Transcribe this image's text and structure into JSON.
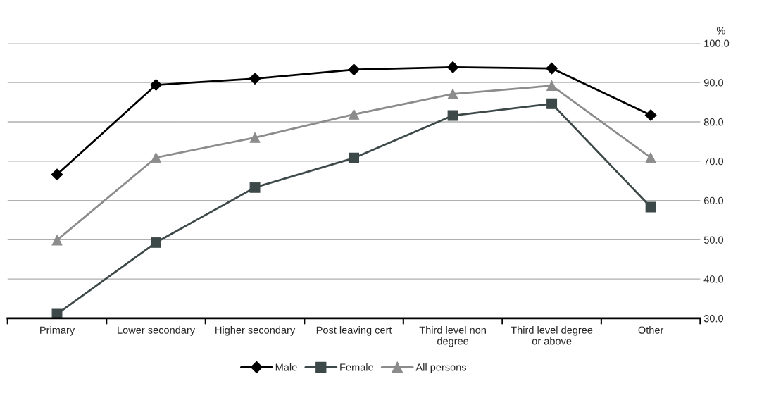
{
  "chart_data": {
    "type": "line",
    "categories": [
      "Primary",
      "Lower secondary",
      "Higher secondary",
      "Post leaving cert",
      "Third level non\ndegree",
      "Third level degree\nor above",
      "Other"
    ],
    "series": [
      {
        "name": "Male",
        "color": "#000000",
        "marker": "diamond",
        "values": [
          66.6,
          89.4,
          91.0,
          93.3,
          93.9,
          93.6,
          81.7
        ]
      },
      {
        "name": "Female",
        "color": "#3d4848",
        "marker": "square",
        "values": [
          31.1,
          49.3,
          63.3,
          70.8,
          81.6,
          84.6,
          58.3
        ]
      },
      {
        "name": "All persons",
        "color": "#8c8c8c",
        "marker": "triangle",
        "values": [
          49.9,
          70.9,
          76.0,
          81.9,
          87.1,
          89.2,
          70.9
        ]
      }
    ],
    "ylabel": "%",
    "ylim": [
      30,
      100
    ],
    "yticks": [
      {
        "value": 30,
        "label": "30.0"
      },
      {
        "value": 40,
        "label": "40.0"
      },
      {
        "value": 50,
        "label": "50.0"
      },
      {
        "value": 60,
        "label": "60.0"
      },
      {
        "value": 70,
        "label": "70.0"
      },
      {
        "value": 80,
        "label": "80.0"
      },
      {
        "value": 90,
        "label": "90.0"
      },
      {
        "value": 100,
        "label": "100.0"
      }
    ],
    "grid": "y",
    "legend": "bottom",
    "line_style": "solid"
  }
}
